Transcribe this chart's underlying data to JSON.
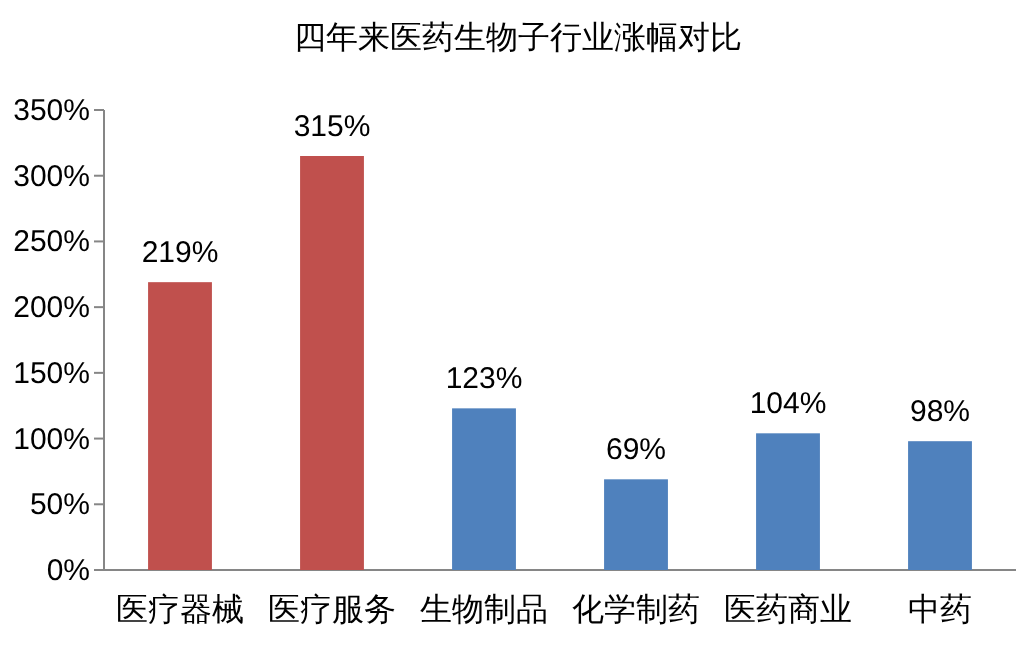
{
  "chart_data": {
    "type": "bar",
    "title": "四年来医药生物子行业涨幅对比",
    "categories": [
      "医疗器械",
      "医疗服务",
      "生物制品",
      "化学制药",
      "医药商业",
      "中药"
    ],
    "values": [
      219,
      315,
      123,
      69,
      104,
      98
    ],
    "colors": [
      "#c0504d",
      "#c0504d",
      "#4f81bd",
      "#4f81bd",
      "#4f81bd",
      "#4f81bd"
    ],
    "value_labels": [
      "219%",
      "315%",
      "123%",
      "69%",
      "104%",
      "98%"
    ],
    "ylim": [
      0,
      350
    ],
    "yticks": [
      {
        "value": 0,
        "label": "0%"
      },
      {
        "value": 50,
        "label": "50%"
      },
      {
        "value": 100,
        "label": "100%"
      },
      {
        "value": 150,
        "label": "150%"
      },
      {
        "value": 200,
        "label": "200%"
      },
      {
        "value": 250,
        "label": "250%"
      },
      {
        "value": 300,
        "label": "300%"
      },
      {
        "value": 350,
        "label": "350%"
      }
    ],
    "grid": false
  }
}
